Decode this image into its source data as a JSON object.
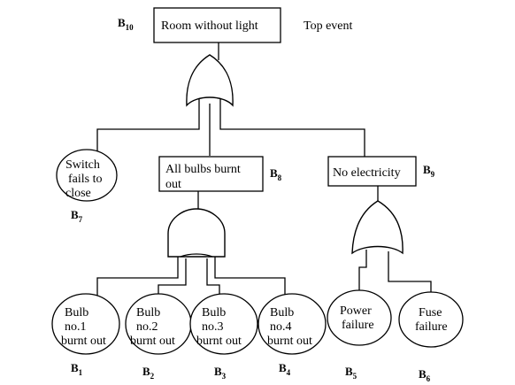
{
  "top": {
    "lines": [
      "Room without light"
    ],
    "id": "B",
    "sub": "10",
    "annotation": "Top event"
  },
  "mid": [
    {
      "key": "switch",
      "lines": [
        "Switch",
        "fails to",
        "close"
      ],
      "id": "B",
      "sub": "7"
    },
    {
      "key": "bulbs",
      "lines": [
        "All bulbs burnt",
        "out"
      ],
      "id": "B",
      "sub": "8"
    },
    {
      "key": "electricity",
      "lines": [
        "No electricity"
      ],
      "id": "B",
      "sub": "9"
    }
  ],
  "leaves": [
    {
      "key": "bulb1",
      "lines": [
        "Bulb",
        "no.1",
        "burnt out"
      ],
      "id": "B",
      "sub": "1"
    },
    {
      "key": "bulb2",
      "lines": [
        "Bulb",
        "no.2",
        "burnt out"
      ],
      "id": "B",
      "sub": "2"
    },
    {
      "key": "bulb3",
      "lines": [
        "Bulb",
        "no.3",
        "burnt out"
      ],
      "id": "B",
      "sub": "3"
    },
    {
      "key": "bulb4",
      "lines": [
        "Bulb",
        "no.4",
        "burnt out"
      ],
      "id": "B",
      "sub": "4"
    },
    {
      "key": "power",
      "lines": [
        "Power",
        "failure"
      ],
      "id": "B",
      "sub": "5"
    },
    {
      "key": "fuse",
      "lines": [
        "Fuse",
        "failure"
      ],
      "id": "B",
      "sub": "6"
    }
  ],
  "gates": [
    {
      "key": "top-or",
      "type": "OR"
    },
    {
      "key": "bulbs-and",
      "type": "AND"
    },
    {
      "key": "electricity-or",
      "type": "OR"
    }
  ]
}
